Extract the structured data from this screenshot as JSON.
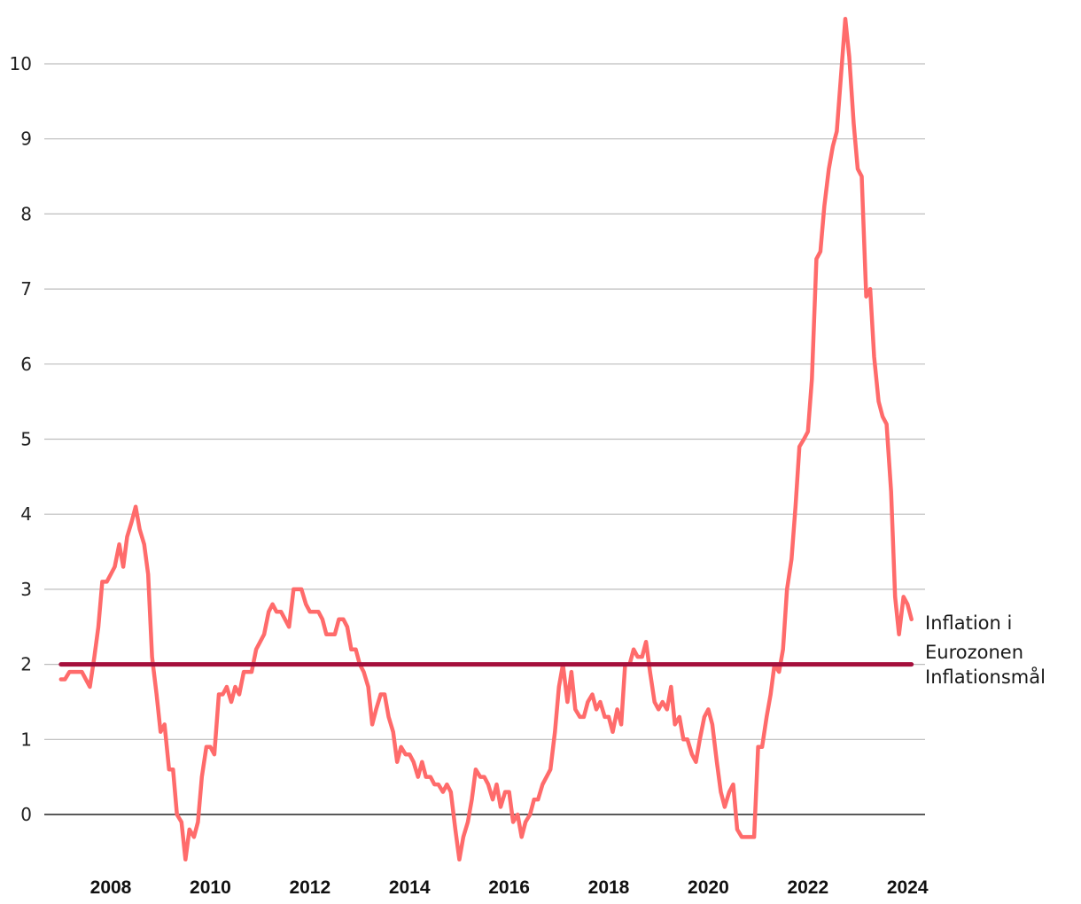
{
  "chart_data": {
    "type": "line",
    "title": "",
    "xlabel": "",
    "ylabel": "",
    "xlim": [
      2006.95,
      2024.35
    ],
    "ylim": [
      -0.6,
      10.6
    ],
    "y_ticks": [
      0,
      1,
      2,
      3,
      4,
      5,
      6,
      7,
      8,
      9,
      10
    ],
    "x_ticks": [
      2008,
      2010,
      2012,
      2014,
      2016,
      2018,
      2020,
      2022,
      2024
    ],
    "grid": true,
    "series": [
      {
        "name": "Inflation i Eurozonen",
        "color": "#ff6b6b",
        "points": [
          [
            2007.0,
            1.8
          ],
          [
            2007.08,
            1.8
          ],
          [
            2007.17,
            1.9
          ],
          [
            2007.25,
            1.9
          ],
          [
            2007.33,
            1.9
          ],
          [
            2007.42,
            1.9
          ],
          [
            2007.5,
            1.8
          ],
          [
            2007.58,
            1.7
          ],
          [
            2007.67,
            2.1
          ],
          [
            2007.75,
            2.5
          ],
          [
            2007.83,
            3.1
          ],
          [
            2007.92,
            3.1
          ],
          [
            2008.0,
            3.2
          ],
          [
            2008.08,
            3.3
          ],
          [
            2008.17,
            3.6
          ],
          [
            2008.25,
            3.3
          ],
          [
            2008.33,
            3.7
          ],
          [
            2008.42,
            3.9
          ],
          [
            2008.5,
            4.1
          ],
          [
            2008.58,
            3.8
          ],
          [
            2008.67,
            3.6
          ],
          [
            2008.75,
            3.2
          ],
          [
            2008.83,
            2.1
          ],
          [
            2008.92,
            1.6
          ],
          [
            2009.0,
            1.1
          ],
          [
            2009.08,
            1.2
          ],
          [
            2009.17,
            0.6
          ],
          [
            2009.25,
            0.6
          ],
          [
            2009.33,
            0.0
          ],
          [
            2009.42,
            -0.1
          ],
          [
            2009.5,
            -0.6
          ],
          [
            2009.58,
            -0.2
          ],
          [
            2009.67,
            -0.3
          ],
          [
            2009.75,
            -0.1
          ],
          [
            2009.83,
            0.5
          ],
          [
            2009.92,
            0.9
          ],
          [
            2010.0,
            0.9
          ],
          [
            2010.08,
            0.8
          ],
          [
            2010.17,
            1.6
          ],
          [
            2010.25,
            1.6
          ],
          [
            2010.33,
            1.7
          ],
          [
            2010.42,
            1.5
          ],
          [
            2010.5,
            1.7
          ],
          [
            2010.58,
            1.6
          ],
          [
            2010.67,
            1.9
          ],
          [
            2010.75,
            1.9
          ],
          [
            2010.83,
            1.9
          ],
          [
            2010.92,
            2.2
          ],
          [
            2011.0,
            2.3
          ],
          [
            2011.08,
            2.4
          ],
          [
            2011.17,
            2.7
          ],
          [
            2011.25,
            2.8
          ],
          [
            2011.33,
            2.7
          ],
          [
            2011.42,
            2.7
          ],
          [
            2011.5,
            2.6
          ],
          [
            2011.58,
            2.5
          ],
          [
            2011.67,
            3.0
          ],
          [
            2011.75,
            3.0
          ],
          [
            2011.83,
            3.0
          ],
          [
            2011.92,
            2.8
          ],
          [
            2012.0,
            2.7
          ],
          [
            2012.08,
            2.7
          ],
          [
            2012.17,
            2.7
          ],
          [
            2012.25,
            2.6
          ],
          [
            2012.33,
            2.4
          ],
          [
            2012.42,
            2.4
          ],
          [
            2012.5,
            2.4
          ],
          [
            2012.58,
            2.6
          ],
          [
            2012.67,
            2.6
          ],
          [
            2012.75,
            2.5
          ],
          [
            2012.83,
            2.2
          ],
          [
            2012.92,
            2.2
          ],
          [
            2013.0,
            2.0
          ],
          [
            2013.08,
            1.9
          ],
          [
            2013.17,
            1.7
          ],
          [
            2013.25,
            1.2
          ],
          [
            2013.33,
            1.4
          ],
          [
            2013.42,
            1.6
          ],
          [
            2013.5,
            1.6
          ],
          [
            2013.58,
            1.3
          ],
          [
            2013.67,
            1.1
          ],
          [
            2013.75,
            0.7
          ],
          [
            2013.83,
            0.9
          ],
          [
            2013.92,
            0.8
          ],
          [
            2014.0,
            0.8
          ],
          [
            2014.08,
            0.7
          ],
          [
            2014.17,
            0.5
          ],
          [
            2014.25,
            0.7
          ],
          [
            2014.33,
            0.5
          ],
          [
            2014.42,
            0.5
          ],
          [
            2014.5,
            0.4
          ],
          [
            2014.58,
            0.4
          ],
          [
            2014.67,
            0.3
          ],
          [
            2014.75,
            0.4
          ],
          [
            2014.83,
            0.3
          ],
          [
            2014.92,
            -0.2
          ],
          [
            2015.0,
            -0.6
          ],
          [
            2015.08,
            -0.3
          ],
          [
            2015.17,
            -0.1
          ],
          [
            2015.25,
            0.2
          ],
          [
            2015.33,
            0.6
          ],
          [
            2015.42,
            0.5
          ],
          [
            2015.5,
            0.5
          ],
          [
            2015.58,
            0.4
          ],
          [
            2015.67,
            0.2
          ],
          [
            2015.75,
            0.4
          ],
          [
            2015.83,
            0.1
          ],
          [
            2015.92,
            0.3
          ],
          [
            2016.0,
            0.3
          ],
          [
            2016.08,
            -0.1
          ],
          [
            2016.17,
            0.0
          ],
          [
            2016.25,
            -0.3
          ],
          [
            2016.33,
            -0.1
          ],
          [
            2016.42,
            0.0
          ],
          [
            2016.5,
            0.2
          ],
          [
            2016.58,
            0.2
          ],
          [
            2016.67,
            0.4
          ],
          [
            2016.75,
            0.5
          ],
          [
            2016.83,
            0.6
          ],
          [
            2016.92,
            1.1
          ],
          [
            2017.0,
            1.7
          ],
          [
            2017.08,
            2.0
          ],
          [
            2017.17,
            1.5
          ],
          [
            2017.25,
            1.9
          ],
          [
            2017.33,
            1.4
          ],
          [
            2017.42,
            1.3
          ],
          [
            2017.5,
            1.3
          ],
          [
            2017.58,
            1.5
          ],
          [
            2017.67,
            1.6
          ],
          [
            2017.75,
            1.4
          ],
          [
            2017.83,
            1.5
          ],
          [
            2017.92,
            1.3
          ],
          [
            2018.0,
            1.3
          ],
          [
            2018.08,
            1.1
          ],
          [
            2018.17,
            1.4
          ],
          [
            2018.25,
            1.2
          ],
          [
            2018.33,
            2.0
          ],
          [
            2018.42,
            2.0
          ],
          [
            2018.5,
            2.2
          ],
          [
            2018.58,
            2.1
          ],
          [
            2018.67,
            2.1
          ],
          [
            2018.75,
            2.3
          ],
          [
            2018.83,
            1.9
          ],
          [
            2018.92,
            1.5
          ],
          [
            2019.0,
            1.4
          ],
          [
            2019.08,
            1.5
          ],
          [
            2019.17,
            1.4
          ],
          [
            2019.25,
            1.7
          ],
          [
            2019.33,
            1.2
          ],
          [
            2019.42,
            1.3
          ],
          [
            2019.5,
            1.0
          ],
          [
            2019.58,
            1.0
          ],
          [
            2019.67,
            0.8
          ],
          [
            2019.75,
            0.7
          ],
          [
            2019.83,
            1.0
          ],
          [
            2019.92,
            1.3
          ],
          [
            2020.0,
            1.4
          ],
          [
            2020.08,
            1.2
          ],
          [
            2020.17,
            0.7
          ],
          [
            2020.25,
            0.3
          ],
          [
            2020.33,
            0.1
          ],
          [
            2020.42,
            0.3
          ],
          [
            2020.5,
            0.4
          ],
          [
            2020.58,
            -0.2
          ],
          [
            2020.67,
            -0.3
          ],
          [
            2020.75,
            -0.3
          ],
          [
            2020.83,
            -0.3
          ],
          [
            2020.92,
            -0.3
          ],
          [
            2021.0,
            0.9
          ],
          [
            2021.08,
            0.9
          ],
          [
            2021.17,
            1.3
          ],
          [
            2021.25,
            1.6
          ],
          [
            2021.33,
            2.0
          ],
          [
            2021.42,
            1.9
          ],
          [
            2021.5,
            2.2
          ],
          [
            2021.58,
            3.0
          ],
          [
            2021.67,
            3.4
          ],
          [
            2021.75,
            4.1
          ],
          [
            2021.83,
            4.9
          ],
          [
            2021.92,
            5.0
          ],
          [
            2022.0,
            5.1
          ],
          [
            2022.08,
            5.8
          ],
          [
            2022.17,
            7.4
          ],
          [
            2022.25,
            7.5
          ],
          [
            2022.33,
            8.1
          ],
          [
            2022.42,
            8.6
          ],
          [
            2022.5,
            8.9
          ],
          [
            2022.58,
            9.1
          ],
          [
            2022.67,
            9.9
          ],
          [
            2022.75,
            10.6
          ],
          [
            2022.83,
            10.1
          ],
          [
            2022.92,
            9.2
          ],
          [
            2023.0,
            8.6
          ],
          [
            2023.08,
            8.5
          ],
          [
            2023.17,
            6.9
          ],
          [
            2023.25,
            7.0
          ],
          [
            2023.33,
            6.1
          ],
          [
            2023.42,
            5.5
          ],
          [
            2023.5,
            5.3
          ],
          [
            2023.58,
            5.2
          ],
          [
            2023.67,
            4.3
          ],
          [
            2023.75,
            2.9
          ],
          [
            2023.83,
            2.4
          ],
          [
            2023.92,
            2.9
          ],
          [
            2024.0,
            2.8
          ],
          [
            2024.08,
            2.6
          ]
        ]
      },
      {
        "name": "Inflationsmål",
        "color": "#a50f3c",
        "points": [
          [
            2007.0,
            2.0
          ],
          [
            2024.08,
            2.0
          ]
        ]
      }
    ],
    "legend": "right, inline at line ends"
  }
}
